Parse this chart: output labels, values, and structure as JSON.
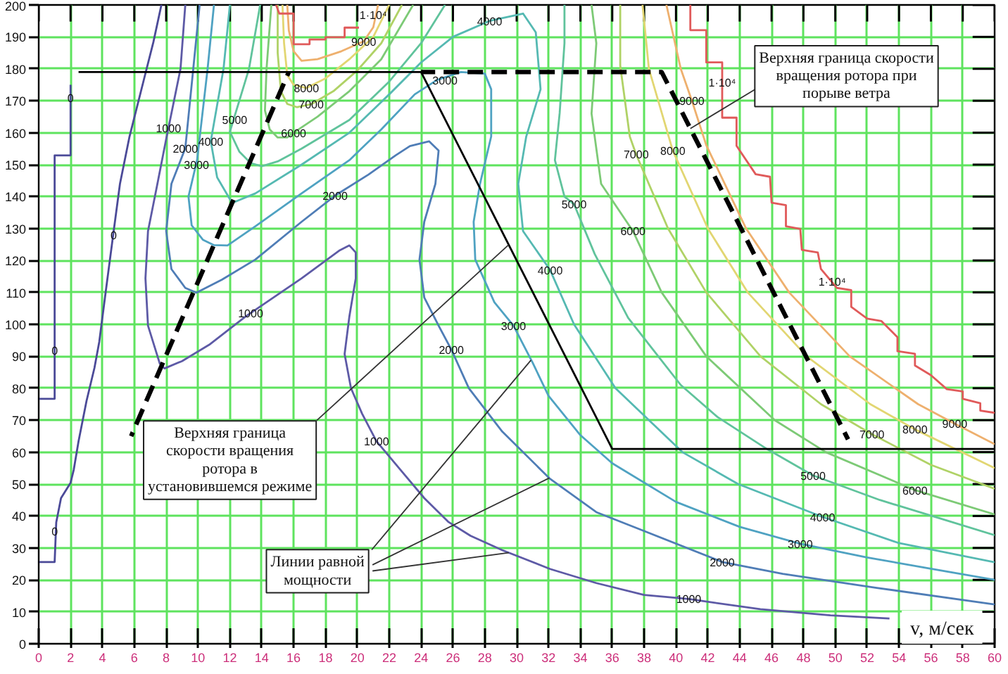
{
  "chart_data": {
    "type": "line",
    "xlabel": "v, м/сек",
    "xlim": [
      0,
      60
    ],
    "ylim": [
      0,
      200
    ],
    "xticks": [
      0,
      2,
      4,
      6,
      8,
      10,
      12,
      14,
      16,
      18,
      20,
      22,
      24,
      26,
      28,
      30,
      32,
      34,
      36,
      38,
      40,
      42,
      44,
      46,
      48,
      50,
      52,
      54,
      56,
      58,
      60
    ],
    "yticks": [
      0,
      10,
      20,
      30,
      40,
      50,
      60,
      70,
      80,
      90,
      100,
      110,
      120,
      130,
      140,
      150,
      160,
      170,
      180,
      190,
      200
    ],
    "grid": true,
    "series": [
      {
        "color": "#4b4a98",
        "x": [
          0,
          1,
          1.1,
          1.4,
          2,
          2.2,
          2.5,
          3,
          3.5,
          3.8,
          4.2,
          4.7,
          5.1,
          5.7,
          6.6,
          7.2,
          7.7
        ],
        "values": [
          25.6,
          25.6,
          38,
          45.6,
          50.4,
          54.5,
          63.4,
          76,
          86.4,
          94.5,
          110,
          129,
          144,
          158.8,
          176.6,
          188.4,
          200
        ]
      },
      {
        "color": "#4b4a98",
        "x": [
          0,
          1,
          1,
          2,
          2
        ],
        "values": [
          76.7,
          76.7,
          152.9,
          152.9,
          175
        ]
      },
      {
        "color": "#5d5aa6",
        "x": [
          9.2,
          8.9,
          8.0,
          7.45,
          6.86,
          6.7,
          6.86,
          7.6,
          7.9,
          9.0,
          10.7,
          13.0,
          16.5,
          18.9,
          19.5,
          19.9,
          19.9,
          19.5,
          19.2,
          19.6,
          20.3,
          21.2,
          22.7,
          24.2,
          25.7,
          27.1,
          29.1,
          32.1,
          35,
          38,
          40.8,
          45.3,
          49.7,
          53.4
        ],
        "values": [
          200,
          180,
          158,
          144,
          129.2,
          114.4,
          99.6,
          87.7,
          86.2,
          88.5,
          93.6,
          102.5,
          114.4,
          123.2,
          124.7,
          122.5,
          114.4,
          102.5,
          90.7,
          80,
          72,
          63.4,
          54.5,
          45.6,
          38.2,
          33.8,
          29.3,
          23.4,
          19,
          15.3,
          14,
          10.8,
          8.9,
          7.9
        ]
      },
      {
        "color": "#4f7db6",
        "x": [
          10.1,
          9.7,
          9.2,
          8.33,
          8.0,
          8.33,
          9.2,
          9.9,
          11.5,
          13.6,
          16.5,
          18.6,
          20.7,
          22.4,
          23.3,
          24.5,
          25.1,
          24.9,
          24.2,
          23.9,
          24.2,
          25.1,
          25.9,
          27,
          29.1,
          32.1,
          35,
          38,
          42.9,
          46.7,
          52.6,
          60
        ],
        "values": [
          200,
          180,
          155.1,
          144,
          129.2,
          117.3,
          111.4,
          109.9,
          114,
          120.3,
          132.1,
          140.3,
          146.9,
          152.9,
          155.8,
          157.3,
          154.4,
          144,
          132.1,
          120.3,
          108.4,
          99.6,
          92.1,
          80,
          66.4,
          51.6,
          41.2,
          35.3,
          25.6,
          21.9,
          17.5,
          12.3
        ]
      },
      {
        "color": "#4fa2c2",
        "x": [
          11.0,
          10.6,
          9.94,
          9.4,
          9.6,
          10.3,
          11.0,
          11.85,
          13.6,
          16.5,
          19.5,
          21.5,
          23.6,
          25,
          26.5,
          28,
          28.4,
          28.4,
          27.7,
          27.3,
          27.4,
          28.6,
          29.8,
          31,
          32,
          34,
          36,
          40,
          44,
          47.8,
          52,
          56,
          60
        ],
        "values": [
          200,
          180,
          151.4,
          140,
          131,
          126.5,
          124.8,
          124.7,
          130.7,
          141,
          151.4,
          161,
          172,
          176.5,
          179,
          178.5,
          173.6,
          158.8,
          144,
          132.1,
          120.3,
          106.9,
          99.6,
          88,
          77.6,
          65.3,
          56.5,
          44.4,
          36.6,
          31.3,
          27,
          23.5,
          20
        ]
      },
      {
        "color": "#55b9b2",
        "x": [
          12.0,
          11.6,
          10.8,
          11.2,
          12.14,
          13.6,
          16.5,
          19.5,
          22,
          24,
          26,
          28.3,
          30.4,
          31.2,
          31.5,
          30.6,
          30.1,
          30.4,
          32.1,
          33.6,
          36.2,
          40.4,
          43.9,
          49.2,
          54,
          60
        ],
        "values": [
          200,
          180,
          157.3,
          146,
          138,
          141,
          150,
          160,
          172,
          182,
          190,
          195,
          197.3,
          191.4,
          173.6,
          158.8,
          144,
          129.2,
          117,
          100,
          80,
          60,
          50,
          39.7,
          31.5,
          25.5
        ]
      },
      {
        "color": "#60c39c",
        "x": [
          13.9,
          13.2,
          12.0,
          12.6,
          13.3,
          14,
          15,
          16.5,
          19.5,
          22,
          24,
          25.5
        ],
        "values": [
          200,
          180,
          160.3,
          154,
          150.5,
          149.5,
          151,
          155,
          164,
          176,
          188,
          200
        ]
      },
      {
        "color": "#60c39c",
        "x": [
          33,
          33,
          32.7,
          32.4,
          33.0,
          33.6,
          34.9,
          37,
          40.3,
          42.6,
          45.7,
          48.6,
          52.8,
          56.4,
          60
        ],
        "values": [
          200,
          188,
          166.2,
          151.4,
          140,
          137.6,
          122,
          102,
          81,
          71,
          61,
          52.7,
          45,
          39.5,
          34
        ]
      },
      {
        "color": "#7dca76",
        "x": [
          14.6,
          14.3,
          14.2,
          14.5,
          15,
          15.6,
          16.0,
          17.5,
          19.5,
          21.5,
          23.5
        ],
        "values": [
          200,
          180,
          167,
          161,
          158.5,
          158.5,
          160,
          165,
          173,
          183,
          200
        ]
      },
      {
        "color": "#7dca76",
        "x": [
          34.7,
          35,
          34.7,
          35.3,
          37.3,
          39.1,
          41.9,
          46.2,
          49.4,
          55,
          60
        ],
        "values": [
          200,
          188,
          166,
          144,
          129.2,
          110,
          90,
          70,
          60,
          48.1,
          40.5
        ]
      },
      {
        "color": "#b0d266",
        "x": [
          15.0,
          15.0,
          15.2,
          15.6,
          16.2,
          17.1,
          18.5,
          20,
          21.5,
          22.8
        ],
        "values": [
          200,
          185,
          173,
          169,
          168,
          168.9,
          173,
          179.5,
          188,
          200
        ]
      },
      {
        "color": "#b0d266",
        "x": [
          36.5,
          36.5,
          37.1,
          37.5,
          39.5,
          41.9,
          45.3,
          49.1,
          52.3,
          56,
          60
        ],
        "values": [
          200,
          181,
          158.8,
          153.2,
          130,
          110,
          90,
          75,
          65.6,
          56,
          48.5
        ]
      },
      {
        "color": "#e2d672",
        "x": [
          15.3,
          15.4,
          15.6,
          16.0,
          16.8,
          18,
          19.5,
          21,
          22
        ],
        "values": [
          200,
          188,
          178,
          175,
          174,
          177,
          183,
          190,
          200
        ]
      },
      {
        "color": "#e2d672",
        "x": [
          37.9,
          38.3,
          39.8,
          42,
          44.5,
          48.2,
          52.2,
          55,
          60
        ],
        "values": [
          200,
          180,
          154.4,
          130,
          110,
          90,
          75,
          67.1,
          55
        ]
      },
      {
        "color": "#eeb06e",
        "x": [
          15.6,
          15.7,
          16.0,
          16.5,
          17.5,
          19,
          20.4,
          21,
          21.3
        ],
        "values": [
          200,
          192,
          185.5,
          182.5,
          183,
          185.5,
          188.6,
          193,
          200
        ]
      },
      {
        "color": "#eeb06e",
        "x": [
          39.4,
          40.3,
          41.0,
          41.9,
          44.4,
          47.1,
          50.9,
          55.2,
          57.5,
          60
        ],
        "values": [
          200,
          180,
          170,
          156.1,
          130,
          110,
          90,
          75,
          68.9,
          62.5
        ]
      },
      {
        "color": "#e05a5a",
        "x": [
          14.9,
          15.1,
          16,
          16,
          17,
          17,
          18,
          18,
          19.2,
          19.2,
          20.1
        ],
        "values": [
          200,
          197.3,
          197.3,
          187.7,
          187.7,
          189.2,
          189.2,
          189.9,
          189.9,
          192.9,
          192.9
        ]
      },
      {
        "color": "#e05a5a",
        "x": [
          40.9,
          40.9,
          41.9,
          41.9,
          42.9,
          42.9,
          43.8,
          43.8,
          45.0,
          45.9,
          46.0,
          46.9,
          46.9,
          47.8,
          47.9,
          48.9,
          49.1,
          50.1,
          51.0,
          51.0,
          52.0,
          52.9,
          53.9,
          53.9,
          55,
          55,
          56,
          57,
          58,
          58,
          59.1,
          59.1,
          60
        ],
        "values": [
          200,
          192.1,
          192.1,
          182,
          182,
          164.7,
          164.7,
          155.9,
          147,
          146.2,
          138.1,
          137.3,
          130.7,
          129.9,
          123.3,
          122.5,
          117.3,
          111.4,
          110.7,
          105.5,
          101.8,
          101,
          96,
          91.6,
          90.8,
          87.1,
          84.1,
          79.7,
          79,
          76.7,
          75.3,
          73,
          72.3
        ]
      },
      {
        "color": "#000000",
        "x": [
          2.5,
          24,
          36,
          60
        ],
        "values": [
          179,
          179,
          61,
          61
        ]
      },
      {
        "color": "#000000",
        "line_style": "dashed",
        "x": [
          5.8,
          15.7
        ],
        "values": [
          65,
          179
        ]
      },
      {
        "color": "#000000",
        "line_style": "dashed",
        "x": [
          24,
          39.1,
          50.8
        ],
        "values": [
          179,
          179,
          64
        ]
      }
    ],
    "annotations": [
      {
        "text": "0",
        "x": 1.0,
        "y": 91.9
      },
      {
        "text": "0",
        "x": 1.0,
        "y": 35.3
      },
      {
        "text": "0",
        "x": 2.0,
        "y": 171
      },
      {
        "text": "0",
        "x": 4.7,
        "y": 128
      },
      {
        "text": "1000",
        "x": 8.14,
        "y": 161.5
      },
      {
        "text": "2000",
        "x": 9.2,
        "y": 155.1
      },
      {
        "text": "3000",
        "x": 9.9,
        "y": 150
      },
      {
        "text": "4000",
        "x": 10.8,
        "y": 157.3
      },
      {
        "text": "5000",
        "x": 12.3,
        "y": 164
      },
      {
        "text": "6000",
        "x": 16.0,
        "y": 160
      },
      {
        "text": "7000",
        "x": 17.1,
        "y": 168.9
      },
      {
        "text": "8000",
        "x": 16.8,
        "y": 174
      },
      {
        "text": "9000",
        "x": 20.4,
        "y": 188.6
      },
      {
        "text": "1·10⁴",
        "x": 21.0,
        "y": 196.6
      },
      {
        "text": "1000",
        "x": 13.3,
        "y": 103.6
      },
      {
        "text": "2000",
        "x": 18.6,
        "y": 140.3
      },
      {
        "text": "3000",
        "x": 25.5,
        "y": 176.5
      },
      {
        "text": "4000",
        "x": 28.3,
        "y": 195
      },
      {
        "text": "2000",
        "x": 25.9,
        "y": 92.1
      },
      {
        "text": "1000",
        "x": 21.2,
        "y": 63.4
      },
      {
        "text": "3000",
        "x": 29.8,
        "y": 99.6
      },
      {
        "text": "4000",
        "x": 32.1,
        "y": 117
      },
      {
        "text": "5000",
        "x": 33.6,
        "y": 137.6
      },
      {
        "text": "6000",
        "x": 37.3,
        "y": 129.2
      },
      {
        "text": "7000",
        "x": 37.5,
        "y": 153.2
      },
      {
        "text": "8000",
        "x": 39.8,
        "y": 154.4
      },
      {
        "text": "9000",
        "x": 41.0,
        "y": 170
      },
      {
        "text": "1·10⁴",
        "x": 42.9,
        "y": 175.5
      },
      {
        "text": "1·10⁴",
        "x": 49.8,
        "y": 113.2
      },
      {
        "text": "7000",
        "x": 52.3,
        "y": 65.6
      },
      {
        "text": "8000",
        "x": 55.0,
        "y": 67.1
      },
      {
        "text": "9000",
        "x": 57.5,
        "y": 68.9
      },
      {
        "text": "5000",
        "x": 48.6,
        "y": 52.7
      },
      {
        "text": "6000",
        "x": 55.0,
        "y": 48.1
      },
      {
        "text": "4000",
        "x": 49.2,
        "y": 39.7
      },
      {
        "text": "3000",
        "x": 47.8,
        "y": 31.3
      },
      {
        "text": "2000",
        "x": 42.9,
        "y": 25.6
      },
      {
        "text": "1000",
        "x": 40.8,
        "y": 14
      },
      {
        "text": "Верхняя граница скорости\nвращения ротора при\nпорыве ветра",
        "x": 40.9,
        "y": 161.3
      },
      {
        "text": "Верхняя граница\nскорости вращения\nротора в\nустановившемся режиме",
        "x": 29.5,
        "y": 124.9
      },
      {
        "text": "Линии равной\nмощности",
        "x": 32.05,
        "y": 51.9
      }
    ]
  }
}
